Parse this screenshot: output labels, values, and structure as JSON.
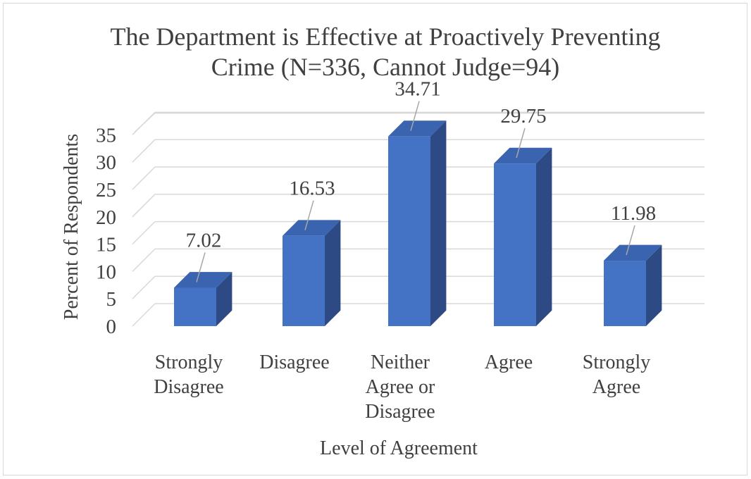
{
  "chart_data": {
    "type": "bar",
    "title_lines": [
      "The Department is Effective at Proactively Preventing",
      "Crime (N=336, Cannot Judge=94)"
    ],
    "categories": [
      [
        "Strongly",
        "Disagree"
      ],
      [
        "Disagree"
      ],
      [
        "Neither",
        "Agree or",
        "Disagree"
      ],
      [
        "Agree"
      ],
      [
        "Strongly",
        "Agree"
      ]
    ],
    "values": [
      7.02,
      16.53,
      34.71,
      29.75,
      11.98
    ],
    "data_labels": [
      "7.02",
      "16.53",
      "34.71",
      "29.75",
      "11.98"
    ],
    "xlabel": "Level of Agreement",
    "ylabel": "Percent of Respondents",
    "ylim": [
      0,
      35
    ],
    "yticks": [
      0,
      5,
      10,
      15,
      20,
      25,
      30,
      35
    ],
    "grid": true,
    "legend": "none",
    "colors": {
      "bar_front": "#4472c4",
      "bar_side": "#2e4a84",
      "bar_top": "#3a63b0",
      "grid": "#d9d9d9",
      "text": "#404040"
    }
  }
}
